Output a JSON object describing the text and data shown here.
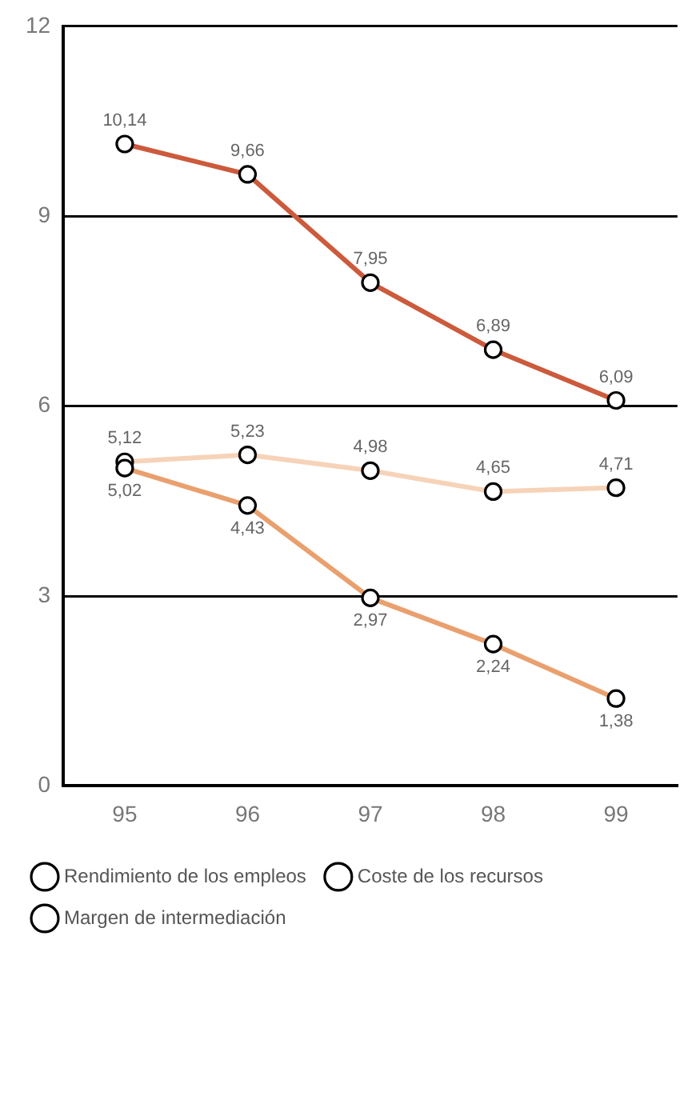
{
  "chart_data": {
    "type": "line",
    "categories": [
      "95",
      "96",
      "97",
      "98",
      "99"
    ],
    "series": [
      {
        "name": "Rendimiento de los empleos",
        "color": "#cc5a3c",
        "values": [
          10.14,
          9.66,
          7.95,
          6.89,
          6.09
        ],
        "value_labels": [
          "10,14",
          "9,66",
          "7,95",
          "6,89",
          "6,09"
        ]
      },
      {
        "name": "Coste de los recursos",
        "color": "#e9a06e",
        "values": [
          5.02,
          4.43,
          2.97,
          2.24,
          1.38
        ],
        "value_labels": [
          "5,02",
          "4,43",
          "2,97",
          "2,24",
          "1,38"
        ]
      },
      {
        "name": "Margen de intermediación",
        "color": "#f6d3b8",
        "values": [
          5.12,
          5.23,
          4.98,
          4.65,
          4.71
        ],
        "value_labels": [
          "5,12",
          "5,23",
          "4,98",
          "4,65",
          "4,71"
        ]
      }
    ],
    "ylim": [
      0,
      12
    ],
    "yticks": [
      0,
      3,
      6,
      9,
      12
    ],
    "grid": "y",
    "legend": "bottom",
    "marker": "circle",
    "line_style": "solid"
  }
}
